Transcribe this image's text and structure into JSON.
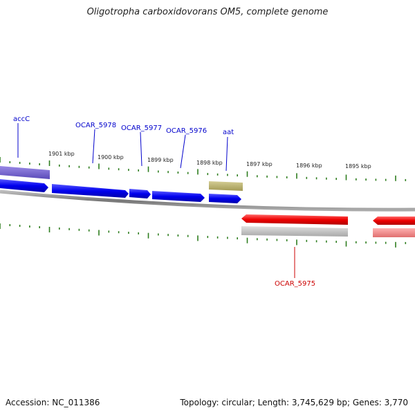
{
  "title": "Oligotropha carboxidovorans OM5, complete genome",
  "footer": {
    "accession": "Accession: NC_011386",
    "stats": "Topology: circular; Length: 3,745,629 bp; Genes: 3,770"
  },
  "kbp_ticks": [
    "1901 kbp",
    "1900 kbp",
    "1899 kbp",
    "1898 kbp",
    "1897 kbp",
    "1896 kbp",
    "1895 kbp"
  ],
  "gene_labels": {
    "accC": "accC",
    "ocar5978": "OCAR_5978",
    "ocar5977": "OCAR_5977",
    "ocar5976": "OCAR_5976",
    "aat": "aat",
    "ocar5975": "OCAR_5975"
  },
  "colors": {
    "forward": "#0000ee",
    "reverse": "#ee0000",
    "rna_like": "#b8b06a",
    "cds_purple": "#6a5acd",
    "backbone": "#888888",
    "tick": "#2e7d1e",
    "label_forward": "#0000cc",
    "label_reverse": "#cc0000"
  }
}
